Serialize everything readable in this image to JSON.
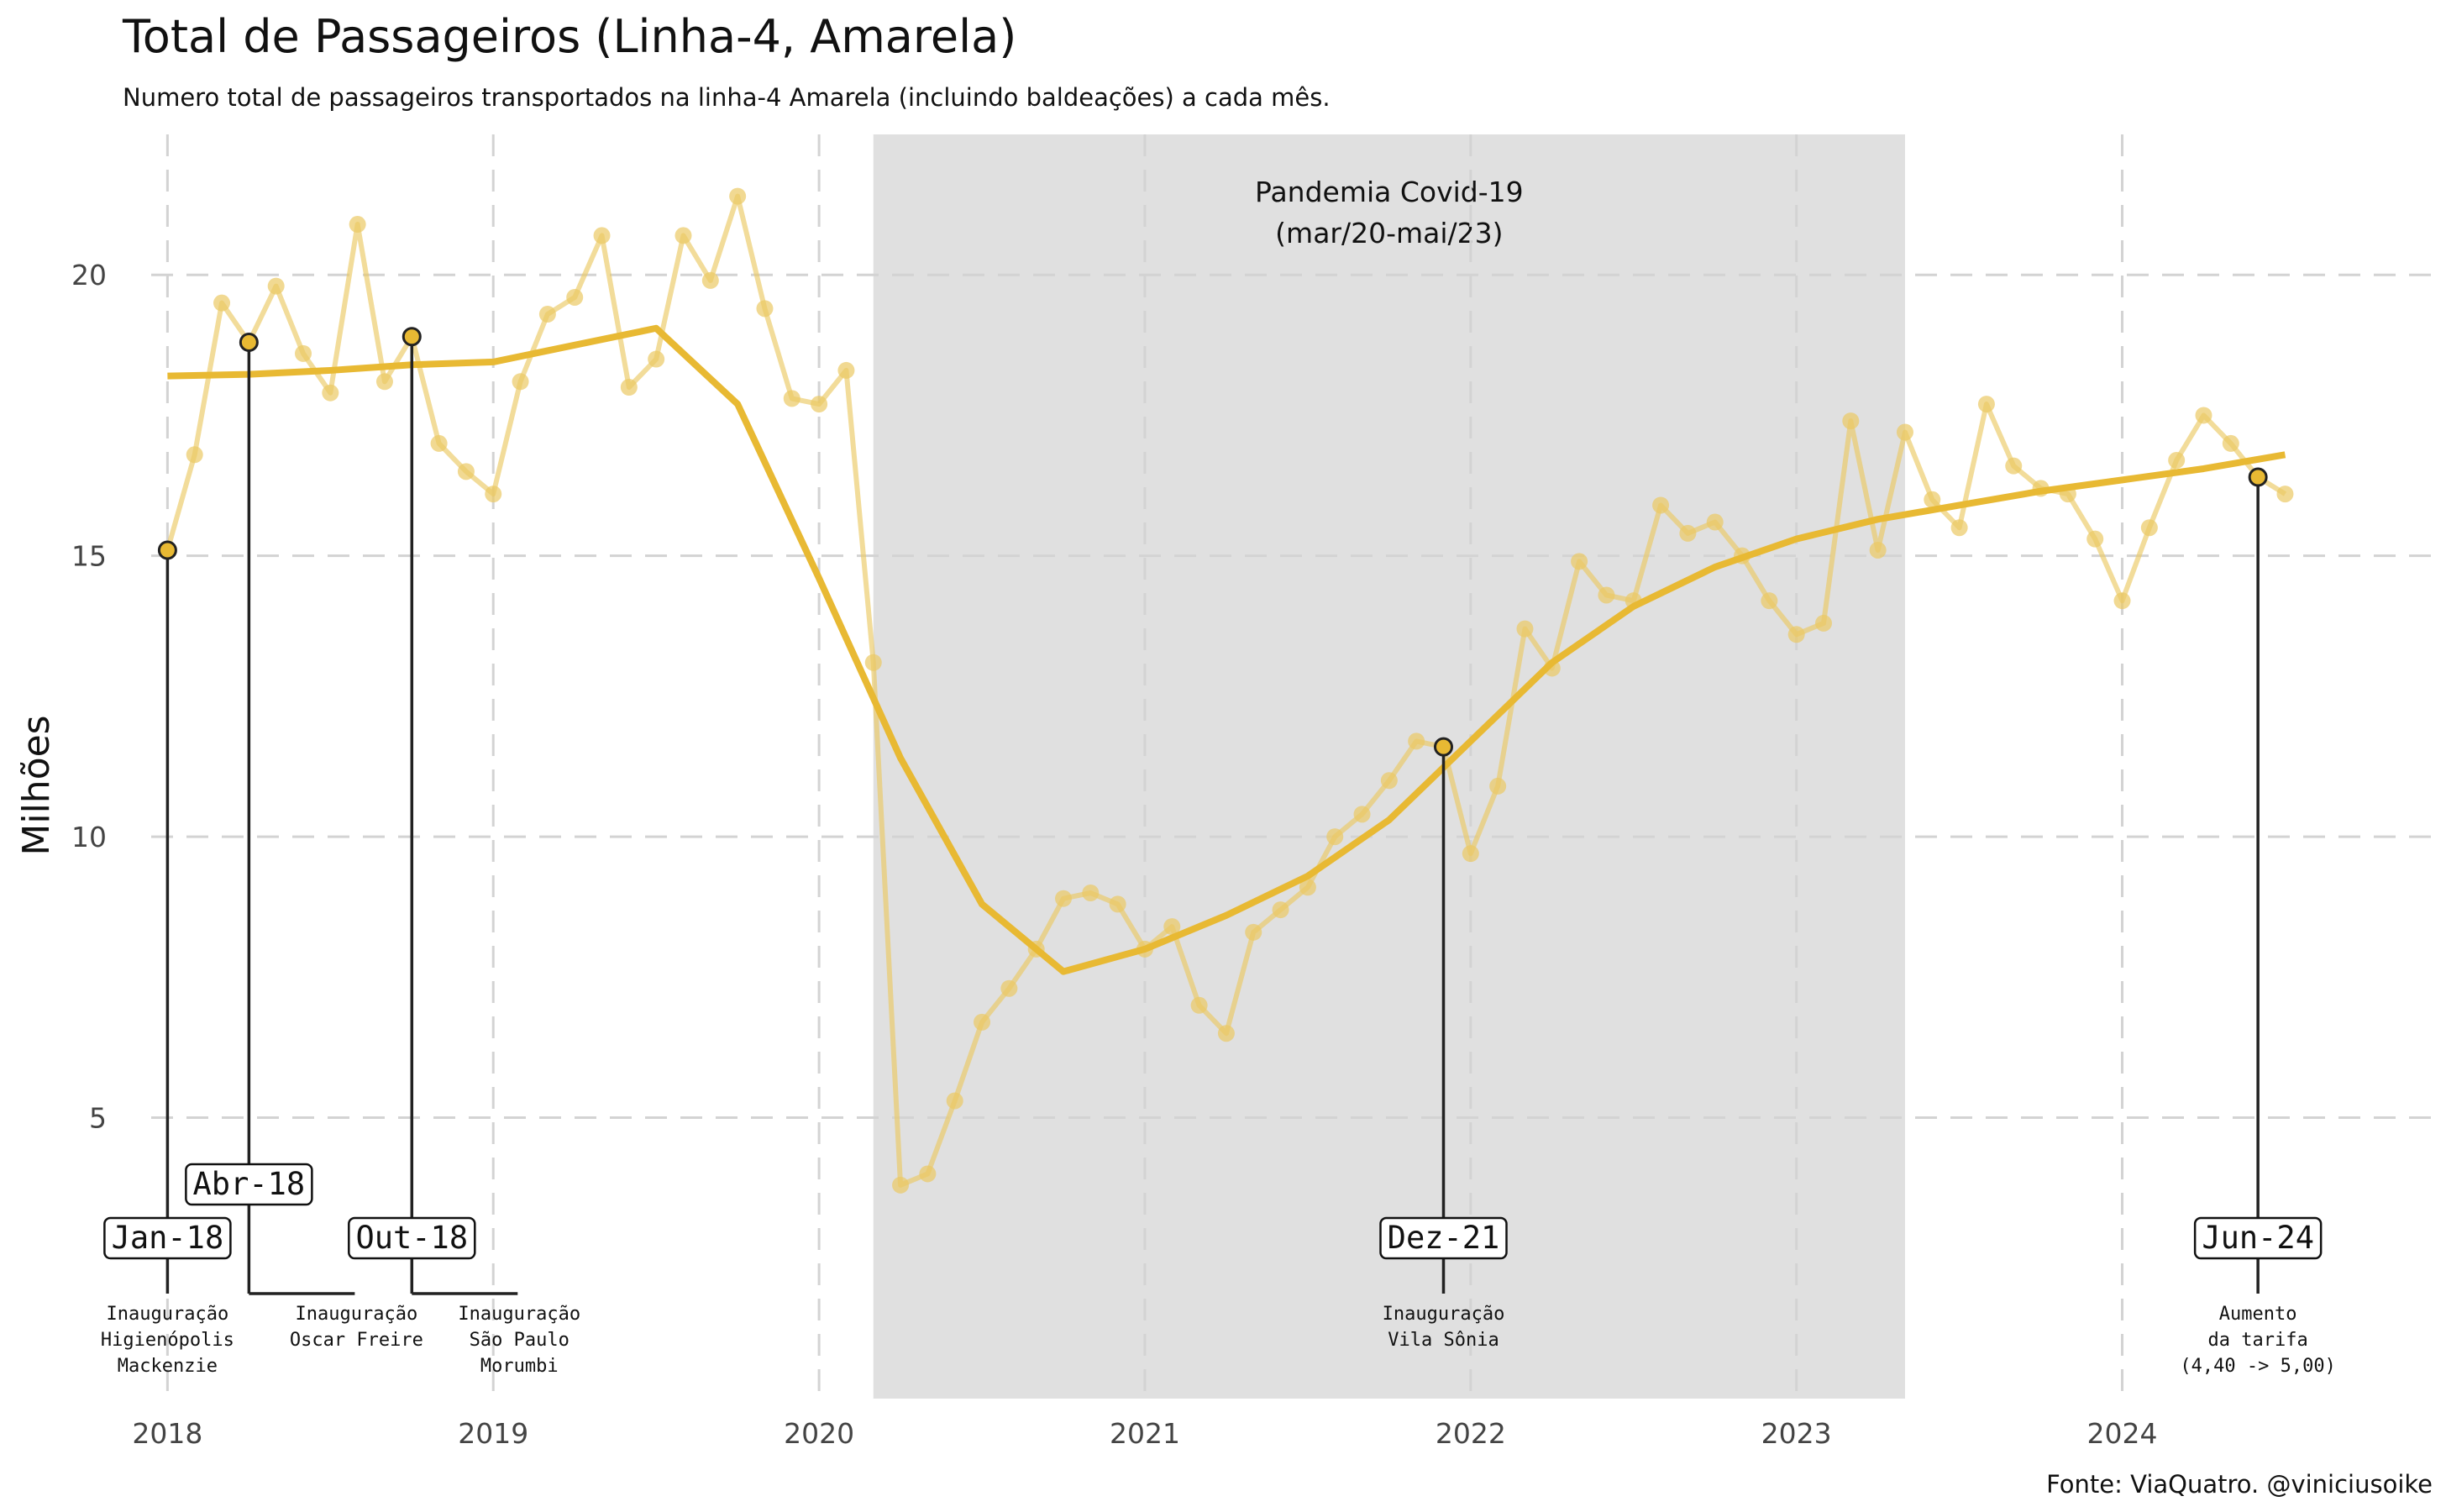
{
  "title": "Total de Passageiros (Linha-4, Amarela)",
  "subtitle": "Numero total de passageiros transportados na linha-4 Amarela (incluindo baldeações) a cada mês.",
  "caption": "Fonte: ViaQuatro. @viniciusoike",
  "chart_data": {
    "type": "line",
    "ylabel": "Milhões",
    "xlabel": "",
    "xlim": [
      2017.95,
      2024.95
    ],
    "ylim": [
      0,
      22.5
    ],
    "x_ticks": [
      2018,
      2019,
      2020,
      2021,
      2022,
      2023,
      2024
    ],
    "x_tick_labels": [
      "2018",
      "2019",
      "2020",
      "2021",
      "2022",
      "2023",
      "2024"
    ],
    "y_ticks": [
      5,
      10,
      15,
      20
    ],
    "y_tick_labels": [
      "5",
      "10",
      "15",
      "20"
    ],
    "grid": true,
    "shaded_region": {
      "from": "2020-03",
      "to": "2023-05",
      "label_line1": "Pandemia Covid-19",
      "label_line2": "(mar/20-mai/23)"
    },
    "series_colors": {
      "monthly": "#ebc964",
      "trend": "#e8b933",
      "band": "#e0e0e0",
      "grid": "#d3d3d3"
    },
    "monthly": {
      "x": [
        "2018-01",
        "2018-02",
        "2018-03",
        "2018-04",
        "2018-05",
        "2018-06",
        "2018-07",
        "2018-08",
        "2018-09",
        "2018-10",
        "2018-11",
        "2018-12",
        "2019-01",
        "2019-02",
        "2019-03",
        "2019-04",
        "2019-05",
        "2019-06",
        "2019-07",
        "2019-08",
        "2019-09",
        "2019-10",
        "2019-11",
        "2019-12",
        "2020-01",
        "2020-02",
        "2020-03",
        "2020-04",
        "2020-05",
        "2020-06",
        "2020-07",
        "2020-08",
        "2020-09",
        "2020-10",
        "2020-11",
        "2020-12",
        "2021-01",
        "2021-02",
        "2021-03",
        "2021-04",
        "2021-05",
        "2021-06",
        "2021-07",
        "2021-08",
        "2021-09",
        "2021-10",
        "2021-11",
        "2021-12",
        "2022-01",
        "2022-02",
        "2022-03",
        "2022-04",
        "2022-05",
        "2022-06",
        "2022-07",
        "2022-08",
        "2022-09",
        "2022-10",
        "2022-11",
        "2022-12",
        "2023-01",
        "2023-02",
        "2023-03",
        "2023-04",
        "2023-05",
        "2023-06",
        "2023-07",
        "2023-08",
        "2023-09",
        "2023-10",
        "2023-11",
        "2023-12",
        "2024-01",
        "2024-02",
        "2024-03",
        "2024-04",
        "2024-05",
        "2024-06",
        "2024-07"
      ],
      "values": [
        15.1,
        16.8,
        19.5,
        18.8,
        19.8,
        18.6,
        17.9,
        20.9,
        18.1,
        18.9,
        17.0,
        16.5,
        16.1,
        18.1,
        19.3,
        19.6,
        20.7,
        18.0,
        18.5,
        20.7,
        19.9,
        21.4,
        19.4,
        17.8,
        17.7,
        18.3,
        13.1,
        3.8,
        4.0,
        5.3,
        6.7,
        7.3,
        8.0,
        8.9,
        9.0,
        8.8,
        8.0,
        8.4,
        7.0,
        6.5,
        8.3,
        8.7,
        9.1,
        10.0,
        10.4,
        11.0,
        11.7,
        11.6,
        9.7,
        10.9,
        13.7,
        13.0,
        14.9,
        14.3,
        14.2,
        15.9,
        15.4,
        15.6,
        15.0,
        14.2,
        13.6,
        13.8,
        17.4,
        15.1,
        17.2,
        16.0,
        15.5,
        17.7,
        16.6,
        16.2,
        16.1,
        15.3,
        14.2,
        15.5,
        16.7,
        17.5,
        17.0,
        16.4,
        16.1
      ]
    },
    "trend": {
      "x": [
        2018.0,
        2018.25,
        2018.5,
        2018.75,
        2019.0,
        2019.25,
        2019.5,
        2019.75,
        2020.0,
        2020.25,
        2020.5,
        2020.75,
        2021.0,
        2021.25,
        2021.5,
        2021.75,
        2022.0,
        2022.25,
        2022.5,
        2022.75,
        2023.0,
        2023.25,
        2023.5,
        2023.75,
        2024.0,
        2024.25,
        2024.5
      ],
      "values": [
        18.2,
        18.23,
        18.3,
        18.4,
        18.45,
        18.75,
        19.05,
        17.7,
        14.6,
        11.4,
        8.8,
        7.6,
        8.0,
        8.6,
        9.3,
        10.3,
        11.7,
        13.1,
        14.1,
        14.8,
        15.3,
        15.65,
        15.9,
        16.15,
        16.35,
        16.55,
        16.8
      ]
    },
    "events": [
      {
        "date": "2018-01",
        "value": 15.1,
        "label": "Jan-18",
        "desc": [
          "Inauguração",
          "Higienópolis",
          "Mackenzie"
        ]
      },
      {
        "date": "2018-04",
        "value": 18.8,
        "label": "Abr-18",
        "desc": [
          "Inauguração",
          "Oscar Freire"
        ]
      },
      {
        "date": "2018-10",
        "value": 18.9,
        "label": "Out-18",
        "desc": [
          "Inauguração",
          "São Paulo",
          "Morumbi"
        ]
      },
      {
        "date": "2021-12",
        "value": 11.6,
        "label": "Dez-21",
        "desc": [
          "Inauguração",
          "Vila Sônia"
        ]
      },
      {
        "date": "2024-06",
        "value": 16.4,
        "label": "Jun-24",
        "desc": [
          "Aumento",
          "da tarifa",
          "(4,40 -> 5,00)"
        ]
      }
    ]
  }
}
